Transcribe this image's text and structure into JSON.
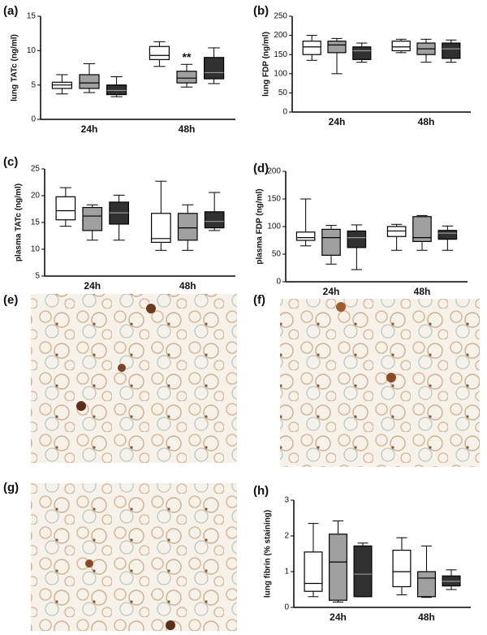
{
  "chart_data": [
    {
      "type": "box",
      "panel_label": "(a)",
      "ylabel": "lung TATc (ng/ml)",
      "categories": [
        "24h",
        "48h"
      ],
      "ylim": [
        0,
        15
      ],
      "yticks": [
        0,
        5,
        10,
        15
      ],
      "annotation": "**",
      "series": [
        {
          "color": "#ffffff",
          "boxes": [
            {
              "min": 3.7,
              "q1": 4.5,
              "median": 5.0,
              "q3": 5.4,
              "max": 6.5
            },
            {
              "min": 7.7,
              "q1": 8.7,
              "median": 9.3,
              "q3": 10.6,
              "max": 11.3
            }
          ]
        },
        {
          "color": "#a0a0a0",
          "boxes": [
            {
              "min": 3.9,
              "q1": 4.5,
              "median": 5.3,
              "q3": 6.5,
              "max": 8.1
            },
            {
              "min": 4.7,
              "q1": 5.3,
              "median": 6.0,
              "q3": 7.0,
              "max": 8.0
            }
          ]
        },
        {
          "color": "#303030",
          "boxes": [
            {
              "min": 3.3,
              "q1": 3.6,
              "median": 4.2,
              "q3": 5.0,
              "max": 6.2
            },
            {
              "min": 5.2,
              "q1": 5.9,
              "median": 6.8,
              "q3": 9.0,
              "max": 10.4
            }
          ]
        }
      ]
    },
    {
      "type": "box",
      "panel_label": "(b)",
      "ylabel": "lung FDP (ng/ml)",
      "categories": [
        "24h",
        "48h"
      ],
      "ylim": [
        0,
        250
      ],
      "yticks": [
        0,
        50,
        100,
        150,
        200,
        250
      ],
      "series": [
        {
          "color": "#ffffff",
          "boxes": [
            {
              "min": 135,
              "q1": 150,
              "median": 170,
              "q3": 185,
              "max": 200
            },
            {
              "min": 155,
              "q1": 160,
              "median": 170,
              "q3": 185,
              "max": 190
            }
          ]
        },
        {
          "color": "#a0a0a0",
          "boxes": [
            {
              "min": 100,
              "q1": 155,
              "median": 175,
              "q3": 185,
              "max": 192
            },
            {
              "min": 130,
              "q1": 150,
              "median": 165,
              "q3": 180,
              "max": 190
            }
          ]
        },
        {
          "color": "#303030",
          "boxes": [
            {
              "min": 130,
              "q1": 137,
              "median": 160,
              "q3": 170,
              "max": 180
            },
            {
              "min": 130,
              "q1": 140,
              "median": 165,
              "q3": 180,
              "max": 188
            }
          ]
        }
      ]
    },
    {
      "type": "box",
      "panel_label": "(c)",
      "ylabel": "plasma TATc (ng/ml)",
      "categories": [
        "24h",
        "48h"
      ],
      "ylim": [
        5,
        25
      ],
      "yticks": [
        5,
        10,
        15,
        20,
        25
      ],
      "series": [
        {
          "color": "#ffffff",
          "boxes": [
            {
              "min": 14.3,
              "q1": 15.5,
              "median": 17.2,
              "q3": 19.8,
              "max": 21.5
            },
            {
              "min": 9.8,
              "q1": 11.3,
              "median": 12.0,
              "q3": 16.7,
              "max": 22.7
            }
          ]
        },
        {
          "color": "#a0a0a0",
          "boxes": [
            {
              "min": 11.7,
              "q1": 13.5,
              "median": 16.2,
              "q3": 17.8,
              "max": 18.3
            },
            {
              "min": 9.8,
              "q1": 11.7,
              "median": 14.0,
              "q3": 16.7,
              "max": 18.3
            }
          ]
        },
        {
          "color": "#303030",
          "boxes": [
            {
              "min": 11.7,
              "q1": 14.7,
              "median": 16.8,
              "q3": 18.8,
              "max": 20.1
            },
            {
              "min": 13.5,
              "q1": 14.0,
              "median": 15.2,
              "q3": 17.0,
              "max": 20.6
            }
          ]
        }
      ]
    },
    {
      "type": "box",
      "panel_label": "(d)",
      "ylabel": "plasma FDP (ng/ml)",
      "categories": [
        "24h",
        "48h"
      ],
      "ylim": [
        0,
        200
      ],
      "yticks": [
        0,
        50,
        100,
        150,
        200
      ],
      "series": [
        {
          "color": "#ffffff",
          "boxes": [
            {
              "min": 65,
              "q1": 75,
              "median": 80,
              "q3": 90,
              "max": 150
            },
            {
              "min": 57,
              "q1": 82,
              "median": 92,
              "q3": 100,
              "max": 104
            }
          ]
        },
        {
          "color": "#a0a0a0",
          "boxes": [
            {
              "min": 32,
              "q1": 48,
              "median": 80,
              "q3": 95,
              "max": 102
            },
            {
              "min": 57,
              "q1": 73,
              "median": 80,
              "q3": 118,
              "max": 120
            }
          ]
        },
        {
          "color": "#303030",
          "boxes": [
            {
              "min": 22,
              "q1": 62,
              "median": 80,
              "q3": 92,
              "max": 103
            },
            {
              "min": 57,
              "q1": 77,
              "median": 88,
              "q3": 93,
              "max": 101
            }
          ]
        }
      ]
    },
    {
      "type": "box",
      "panel_label": "(h)",
      "ylabel": "lung fibrin (% staining)",
      "categories": [
        "24h",
        "48h"
      ],
      "ylim": [
        0,
        3
      ],
      "yticks": [
        0,
        1,
        2,
        3
      ],
      "series": [
        {
          "color": "#ffffff",
          "boxes": [
            {
              "min": 0.3,
              "q1": 0.45,
              "median": 0.67,
              "q3": 1.55,
              "max": 2.35
            },
            {
              "min": 0.35,
              "q1": 0.58,
              "median": 1.0,
              "q3": 1.6,
              "max": 1.95
            }
          ]
        },
        {
          "color": "#a0a0a0",
          "boxes": [
            {
              "min": 0.15,
              "q1": 0.2,
              "median": 1.27,
              "q3": 2.05,
              "max": 2.42
            },
            {
              "min": 0.28,
              "q1": 0.3,
              "median": 0.82,
              "q3": 1.0,
              "max": 1.72
            }
          ]
        },
        {
          "color": "#303030",
          "boxes": [
            {
              "min": 0.3,
              "q1": 0.3,
              "median": 0.93,
              "q3": 1.72,
              "max": 1.8
            },
            {
              "min": 0.5,
              "q1": 0.6,
              "median": 0.73,
              "q3": 0.88,
              "max": 1.05
            }
          ]
        }
      ]
    }
  ],
  "image_panels": [
    {
      "label": "(e)"
    },
    {
      "label": "(f)"
    },
    {
      "label": "(g)"
    }
  ]
}
